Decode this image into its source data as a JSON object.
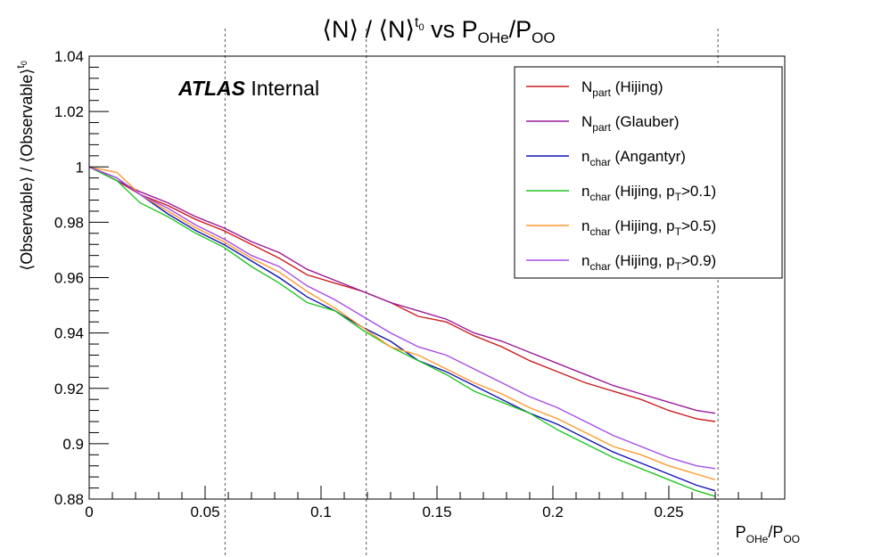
{
  "chart_data": {
    "type": "line",
    "title": {
      "base": "⟨N⟩ / ⟨N⟩",
      "sup": "t",
      "sub": "0",
      "mid": " vs P",
      "sub2": "OHe",
      "mid2": "/P",
      "sub3": "OO"
    },
    "ylabel": "⟨Observable⟩ / ⟨Observable⟩",
    "ylabel_sup": "t",
    "ylabel_sub": "0",
    "xlabel": {
      "p": "P",
      "s1": "OHe",
      "slash": "/P",
      "s2": "OO"
    },
    "xlim": [
      0,
      0.3
    ],
    "ylim": [
      0.88,
      1.04
    ],
    "x_ticks": [
      {
        "v": 0,
        "label": "0"
      },
      {
        "v": 0.05,
        "label": "0.05"
      },
      {
        "v": 0.1,
        "label": "0.1"
      },
      {
        "v": 0.15,
        "label": "0.15"
      },
      {
        "v": 0.2,
        "label": "0.2"
      },
      {
        "v": 0.25,
        "label": "0.25"
      }
    ],
    "y_ticks": [
      {
        "v": 0.88,
        "label": "0.88"
      },
      {
        "v": 0.9,
        "label": "0.9"
      },
      {
        "v": 0.92,
        "label": "0.92"
      },
      {
        "v": 0.94,
        "label": "0.94"
      },
      {
        "v": 0.96,
        "label": "0.96"
      },
      {
        "v": 0.98,
        "label": "0.98"
      },
      {
        "v": 1.0,
        "label": "1"
      },
      {
        "v": 1.02,
        "label": "1.02"
      },
      {
        "v": 1.04,
        "label": "1.04"
      }
    ],
    "vlines_x": [
      0.0586,
      0.1195,
      0.2712
    ],
    "annotation": {
      "bold": "ATLAS",
      "rest": " Internal"
    },
    "legend_position": "top-right",
    "x": [
      0,
      0.012,
      0.022,
      0.034,
      0.046,
      0.058,
      0.07,
      0.082,
      0.094,
      0.106,
      0.118,
      0.13,
      0.142,
      0.154,
      0.166,
      0.178,
      0.19,
      0.202,
      0.214,
      0.226,
      0.238,
      0.25,
      0.262,
      0.27
    ],
    "series": [
      {
        "key": "npart_hijing",
        "legend": {
          "main": "N",
          "sub": "part",
          "rest": " (Hijing)",
          "sub2": "",
          "rest2": ""
        },
        "color": "#cc1f1f",
        "values": [
          1.0,
          0.995,
          0.99,
          0.986,
          0.981,
          0.977,
          0.972,
          0.967,
          0.961,
          0.958,
          0.955,
          0.951,
          0.946,
          0.944,
          0.939,
          0.935,
          0.93,
          0.926,
          0.922,
          0.919,
          0.916,
          0.912,
          0.909,
          0.908
        ]
      },
      {
        "key": "npart_glauber",
        "legend": {
          "main": "N",
          "sub": "part",
          "rest": " (Glauber)",
          "sub2": "",
          "rest2": ""
        },
        "color": "#9b1a9b",
        "values": [
          1.0,
          0.995,
          0.991,
          0.987,
          0.982,
          0.978,
          0.973,
          0.969,
          0.963,
          0.959,
          0.955,
          0.951,
          0.948,
          0.945,
          0.94,
          0.937,
          0.933,
          0.929,
          0.925,
          0.921,
          0.918,
          0.915,
          0.912,
          0.911
        ]
      },
      {
        "key": "nchar_angantyr",
        "legend": {
          "main": "n",
          "sub": "char",
          "rest": " (Angantyr)",
          "sub2": "",
          "rest2": ""
        },
        "color": "#1414b4",
        "values": [
          1.0,
          0.996,
          0.99,
          0.983,
          0.977,
          0.972,
          0.966,
          0.96,
          0.953,
          0.948,
          0.942,
          0.937,
          0.93,
          0.926,
          0.921,
          0.916,
          0.911,
          0.907,
          0.902,
          0.897,
          0.893,
          0.889,
          0.885,
          0.883
        ]
      },
      {
        "key": "nchar_hijing_01",
        "legend": {
          "main": "n",
          "sub": "char",
          "rest": " (Hijing, p",
          "sub2": "T",
          "rest2": ">0.1)"
        },
        "color": "#22c522",
        "values": [
          1.0,
          0.995,
          0.987,
          0.982,
          0.976,
          0.971,
          0.964,
          0.958,
          0.951,
          0.948,
          0.941,
          0.935,
          0.93,
          0.925,
          0.919,
          0.915,
          0.911,
          0.905,
          0.9,
          0.895,
          0.891,
          0.887,
          0.883,
          0.881
        ]
      },
      {
        "key": "nchar_hijing_05",
        "legend": {
          "main": "n",
          "sub": "char",
          "rest": " (Hijing, p",
          "sub2": "T",
          "rest2": ">0.5)"
        },
        "color": "#ff9a2e",
        "values": [
          1.0,
          0.998,
          0.99,
          0.984,
          0.978,
          0.973,
          0.967,
          0.962,
          0.955,
          0.949,
          0.942,
          0.935,
          0.932,
          0.927,
          0.922,
          0.918,
          0.913,
          0.909,
          0.904,
          0.899,
          0.896,
          0.892,
          0.889,
          0.887
        ]
      },
      {
        "key": "nchar_hijing_09",
        "legend": {
          "main": "n",
          "sub": "char",
          "rest": " (Hijing, p",
          "sub2": "T",
          "rest2": ">0.9)"
        },
        "color": "#a64de6",
        "values": [
          1.0,
          0.996,
          0.99,
          0.985,
          0.979,
          0.974,
          0.968,
          0.964,
          0.957,
          0.952,
          0.946,
          0.94,
          0.935,
          0.932,
          0.927,
          0.922,
          0.917,
          0.913,
          0.908,
          0.903,
          0.899,
          0.895,
          0.892,
          0.891
        ]
      }
    ]
  }
}
